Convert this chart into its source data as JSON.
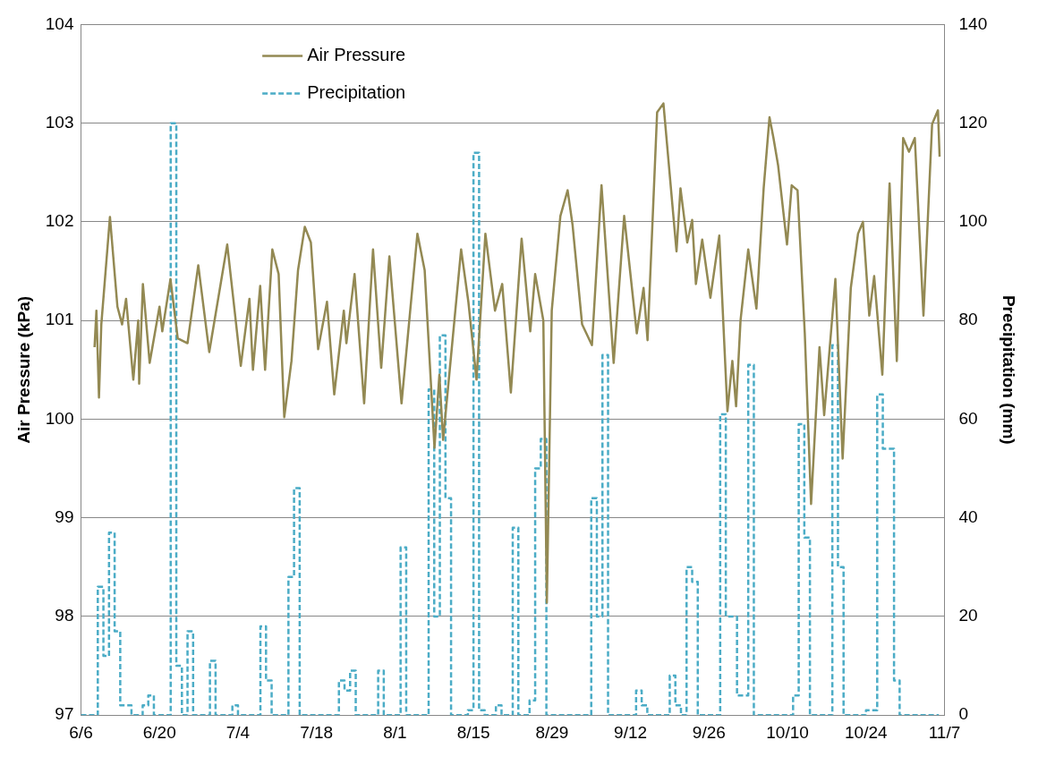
{
  "chart_data": {
    "type": "line",
    "ylabel": "Air Pressure (kPa)",
    "y2label": "Precipitation (mm)",
    "xlim": [
      "--06-06",
      "--11-07"
    ],
    "xticks": [
      {
        "value": "--06-06",
        "label": "6/6"
      },
      {
        "value": "--06-20",
        "label": "6/20"
      },
      {
        "value": "--07-04",
        "label": "7/4"
      },
      {
        "value": "--07-18",
        "label": "7/18"
      },
      {
        "value": "--08-01",
        "label": "8/1"
      },
      {
        "value": "--08-15",
        "label": "8/15"
      },
      {
        "value": "--08-29",
        "label": "8/29"
      },
      {
        "value": "--09-12",
        "label": "9/12"
      },
      {
        "value": "--09-26",
        "label": "9/26"
      },
      {
        "value": "--10-10",
        "label": "10/10"
      },
      {
        "value": "--10-24",
        "label": "10/24"
      },
      {
        "value": "--11-07",
        "label": "11/7"
      }
    ],
    "ylim": [
      97,
      104
    ],
    "yticks": [
      97,
      98,
      99,
      100,
      101,
      102,
      103,
      104
    ],
    "y2lim": [
      0,
      140
    ],
    "y2ticks": [
      0,
      20,
      40,
      60,
      80,
      100,
      120,
      140
    ],
    "grid": "y",
    "legend": "top left",
    "marker": "none",
    "series": [
      {
        "name": "Air Pressure",
        "type": "line",
        "color": "#938953",
        "line_style": "solid",
        "x": [
          "--06-08T10:00",
          "--06-08T18:00",
          "--06-09T05:00",
          "--06-09T15:00",
          "--06-11T04:00",
          "--06-12T12:00",
          "--06-13T08:00",
          "--06-14T01:00",
          "--06-15T08:00",
          "--06-16T05:00",
          "--06-16T09:00",
          "--06-17T01:00",
          "--06-18T06:00",
          "--06-20T00:00",
          "--06-20T12:00",
          "--06-21T23:00",
          "--06-23T06:00",
          "--06-25T00:00",
          "--06-26T22:00",
          "--06-28T21:00",
          "--07-02T02:00",
          "--07-04T12:00",
          "--07-06T01:00",
          "--07-06T16:00",
          "--07-07T23:00",
          "--07-08T20:00",
          "--07-10T03:00",
          "--07-11T06:00",
          "--07-12T06:00",
          "--07-13T13:00",
          "--07-14T17:00",
          "--07-15T22:00",
          "--07-17T00:00",
          "--07-18T07:00",
          "--07-19T21:00",
          "--07-21T04:00",
          "--07-22T21:00",
          "--07-23T08:00",
          "--07-24T19:00",
          "--07-26T12:00",
          "--07-28T02:00",
          "--07-29T13:00",
          "--07-31T00:00",
          "--08-02T04:00",
          "--08-05T00:00",
          "--08-06T07:00",
          "--08-08T01:00",
          "--08-08T22:00",
          "--08-09T14:00",
          "--08-12T19:00",
          "--08-14T02:00",
          "--08-15T13:00",
          "--08-17T03:00",
          "--08-18T20:00",
          "--08-20T03:00",
          "--08-21T16:00",
          "--08-23T14:00",
          "--08-25T03:00",
          "--08-26T00:00",
          "--08-27T11:00",
          "--08-28T02:00",
          "--08-28T23:00",
          "--08-30T12:00",
          "--08-31T19:00",
          "--09-01T16:00",
          "--09-03T09:00",
          "--09-05T03:00",
          "--09-06T20:00",
          "--09-09T00:00",
          "--09-10T21:00",
          "--09-13T03:00",
          "--09-14T08:00",
          "--09-15T01:00",
          "--09-16T18:00",
          "--09-17T21:00",
          "--09-20T05:00",
          "--09-20T22:00",
          "--09-22T03:00",
          "--09-23T00:00",
          "--09-23T16:00",
          "--09-24T19:00",
          "--09-26T06:00",
          "--09-27T20:00",
          "--09-29T07:00",
          "--09-30T04:00",
          "--09-30T20:00",
          "--10-01T15:00",
          "--10-03T00:00",
          "--10-04T11:00",
          "--10-05T18:00",
          "--10-06T19:00",
          "--10-07T12:00",
          "--10-08T08:00",
          "--10-09T22:00",
          "--10-10T18:00",
          "--10-11T19:00",
          "--10-13T02:00",
          "--10-14T05:00",
          "--10-15T17:00",
          "--10-16T13:00",
          "--10-18T13:00",
          "--10-19T20:00",
          "--10-21T07:00",
          "--10-22T14:00",
          "--10-23T11:00",
          "--10-24T14:00",
          "--10-25T11:00",
          "--10-26T22:00",
          "--10-28T05:00",
          "--10-29T12:00",
          "--10-30T15:00",
          "--10-31T16:00",
          "--11-01T17:00",
          "--11-03T06:00",
          "--11-04T19:00",
          "--11-05T20:00",
          "--11-06T03:00"
        ],
        "values": [
          100.73,
          101.1,
          100.22,
          100.96,
          102.05,
          101.14,
          100.96,
          101.22,
          100.4,
          101.0,
          100.36,
          101.37,
          100.57,
          101.14,
          100.89,
          101.42,
          100.82,
          100.77,
          101.56,
          100.68,
          101.77,
          100.54,
          101.22,
          100.5,
          101.35,
          100.5,
          101.72,
          101.47,
          100.02,
          100.59,
          101.51,
          101.95,
          101.79,
          100.71,
          101.19,
          100.25,
          101.1,
          100.77,
          101.47,
          100.16,
          101.72,
          100.52,
          101.65,
          100.16,
          101.88,
          101.51,
          99.71,
          100.45,
          99.79,
          101.72,
          101.19,
          100.4,
          101.88,
          101.1,
          101.37,
          100.27,
          101.83,
          100.89,
          101.47,
          101.0,
          98.14,
          101.1,
          102.06,
          102.32,
          101.97,
          100.96,
          100.75,
          102.37,
          100.57,
          102.06,
          100.87,
          101.33,
          100.8,
          103.11,
          103.2,
          101.7,
          102.34,
          101.79,
          102.02,
          101.37,
          101.82,
          101.23,
          101.86,
          100.08,
          100.59,
          100.13,
          101.0,
          101.72,
          101.12,
          102.34,
          103.06,
          102.85,
          102.57,
          101.77,
          102.37,
          102.32,
          100.87,
          99.14,
          100.73,
          100.04,
          101.42,
          99.6,
          101.33,
          101.88,
          102.0,
          101.05,
          101.45,
          100.45,
          102.39,
          100.59,
          102.85,
          102.71,
          102.85,
          101.05,
          102.99,
          103.13,
          102.66
        ]
      },
      {
        "name": "Precipitation",
        "type": "step",
        "axis": "y2",
        "color": "#4bacc6",
        "line_style": "dashed",
        "x": [
          "--06-06",
          "--06-09",
          "--06-10",
          "--06-11",
          "--06-12",
          "--06-13",
          "--06-14",
          "--06-15",
          "--06-17",
          "--06-18",
          "--06-19",
          "--06-22",
          "--06-23",
          "--06-24",
          "--06-25",
          "--06-26",
          "--06-29",
          "--06-30",
          "--07-03",
          "--07-04",
          "--07-08",
          "--07-09",
          "--07-10",
          "--07-13",
          "--07-14",
          "--07-15",
          "--07-22",
          "--07-23",
          "--07-24",
          "--07-25",
          "--07-29",
          "--07-30",
          "--08-02",
          "--08-03",
          "--08-07",
          "--08-08",
          "--08-09",
          "--08-10",
          "--08-11",
          "--08-14",
          "--08-15",
          "--08-16",
          "--08-17",
          "--08-19",
          "--08-20",
          "--08-22",
          "--08-23",
          "--08-25",
          "--08-26",
          "--08-27",
          "--08-28",
          "--09-05",
          "--09-06",
          "--09-07",
          "--09-08",
          "--09-13",
          "--09-14",
          "--09-15",
          "--09-19",
          "--09-20",
          "--09-21",
          "--09-22",
          "--09-23",
          "--09-24",
          "--09-28",
          "--09-29",
          "--09-30",
          "--10-01",
          "--10-02",
          "--10-03",
          "--10-04",
          "--10-11",
          "--10-12",
          "--10-13",
          "--10-14",
          "--10-18",
          "--10-19",
          "--10-20",
          "--10-24",
          "--10-25",
          "--10-26",
          "--10-27",
          "--10-28",
          "--10-29",
          "--10-30",
          "--11-06"
        ],
        "values": [
          0,
          26,
          12,
          37,
          17,
          2,
          2,
          0,
          2,
          4,
          0,
          120,
          10,
          0,
          17,
          0,
          11,
          0,
          2,
          0,
          18,
          7,
          0,
          28,
          46,
          0,
          7,
          5,
          9,
          0,
          9,
          0,
          34,
          0,
          66,
          20,
          77,
          44,
          0,
          1,
          114,
          1,
          0,
          2,
          0,
          38,
          0,
          3,
          50,
          56,
          0,
          44,
          20,
          73,
          0,
          5,
          2,
          0,
          8,
          2,
          0,
          30,
          27,
          0,
          61,
          20,
          20,
          4,
          4,
          71,
          0,
          4,
          59,
          36,
          0,
          75,
          30,
          0,
          1,
          1,
          65,
          54,
          54,
          7,
          0,
          0
        ]
      }
    ]
  }
}
